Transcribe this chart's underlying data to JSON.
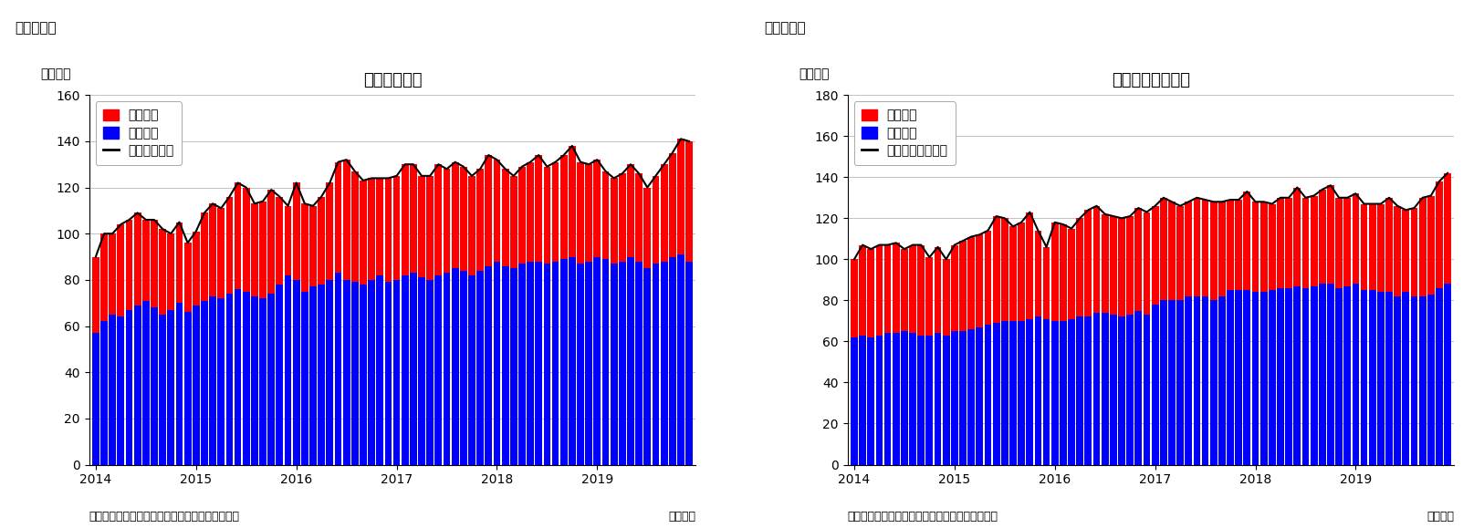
{
  "chart1": {
    "title": "住宅着工件数",
    "header": "（図表１）",
    "ylabel": "（万件）",
    "ylim": [
      0,
      160
    ],
    "yticks": [
      0,
      20,
      40,
      60,
      80,
      100,
      120,
      140,
      160
    ],
    "legend_line": "住宅着工件数",
    "legend_red": "集合住宅",
    "legend_blue": "一戸建て",
    "source": "（資料）センサス局よりニッセイ基礎研究所作成",
    "monthly_note": "（月次）",
    "blue_values": [
      57,
      62,
      65,
      64,
      67,
      69,
      71,
      68,
      65,
      67,
      70,
      66,
      69,
      71,
      73,
      72,
      74,
      76,
      75,
      73,
      72,
      74,
      78,
      82,
      80,
      75,
      77,
      78,
      80,
      83,
      80,
      79,
      78,
      80,
      82,
      79,
      80,
      82,
      83,
      81,
      80,
      82,
      83,
      85,
      84,
      82,
      84,
      86,
      88,
      86,
      85,
      87,
      88,
      88,
      87,
      88,
      89,
      90,
      87,
      88,
      90,
      89,
      87,
      88,
      90,
      88,
      85,
      87,
      88,
      90,
      91,
      88
    ],
    "red_values": [
      33,
      38,
      35,
      40,
      39,
      40,
      35,
      38,
      37,
      33,
      35,
      30,
      32,
      38,
      40,
      39,
      42,
      46,
      45,
      40,
      42,
      45,
      38,
      30,
      42,
      38,
      35,
      38,
      42,
      48,
      52,
      48,
      45,
      44,
      42,
      45,
      45,
      48,
      47,
      44,
      45,
      48,
      45,
      46,
      45,
      43,
      44,
      48,
      44,
      42,
      40,
      42,
      43,
      46,
      42,
      43,
      45,
      48,
      44,
      42,
      42,
      38,
      37,
      38,
      40,
      38,
      35,
      38,
      42,
      45,
      50,
      52
    ],
    "xtick_years": [
      "2014",
      "2015",
      "2016",
      "2017",
      "2018",
      "2019"
    ]
  },
  "chart2": {
    "title": "住宅着工許可件数",
    "header": "（図表２）",
    "ylabel": "（万件）",
    "ylim": [
      0,
      180
    ],
    "yticks": [
      0,
      20,
      40,
      60,
      80,
      100,
      120,
      140,
      160,
      180
    ],
    "legend_line": "住宅建築許可件数",
    "legend_red": "集合住宅",
    "legend_blue": "一戸建て",
    "source": "（資料）センサス局よりニッセイ基礎研究所作成",
    "monthly_note": "（月次）",
    "blue_values": [
      62,
      63,
      62,
      63,
      64,
      64,
      65,
      64,
      63,
      63,
      64,
      63,
      65,
      65,
      66,
      67,
      68,
      69,
      70,
      70,
      70,
      71,
      72,
      71,
      70,
      70,
      71,
      72,
      72,
      74,
      74,
      73,
      72,
      73,
      75,
      73,
      78,
      80,
      80,
      80,
      82,
      82,
      82,
      80,
      82,
      85,
      85,
      85,
      84,
      84,
      85,
      86,
      86,
      87,
      86,
      87,
      88,
      88,
      86,
      87,
      88,
      85,
      85,
      84,
      84,
      82,
      84,
      82,
      82,
      83,
      86,
      88
    ],
    "red_values": [
      38,
      44,
      43,
      44,
      43,
      44,
      40,
      43,
      44,
      38,
      42,
      37,
      42,
      44,
      45,
      45,
      46,
      52,
      50,
      46,
      48,
      52,
      42,
      35,
      48,
      47,
      44,
      48,
      52,
      52,
      48,
      48,
      48,
      48,
      50,
      50,
      48,
      50,
      48,
      46,
      46,
      48,
      47,
      48,
      46,
      44,
      44,
      48,
      44,
      44,
      42,
      44,
      44,
      48,
      44,
      44,
      46,
      48,
      44,
      43,
      44,
      42,
      42,
      43,
      46,
      44,
      40,
      43,
      48,
      48,
      52,
      54
    ],
    "xtick_years": [
      "2014",
      "2015",
      "2016",
      "2017",
      "2018",
      "2019"
    ]
  },
  "bar_color_red": "#FF0000",
  "bar_color_blue": "#0000FF",
  "line_color": "#000000",
  "background_color": "#FFFFFF",
  "grid_color": "#AAAAAA",
  "title_fontsize": 13,
  "label_fontsize": 10,
  "tick_fontsize": 10,
  "header_fontsize": 11,
  "source_fontsize": 9
}
